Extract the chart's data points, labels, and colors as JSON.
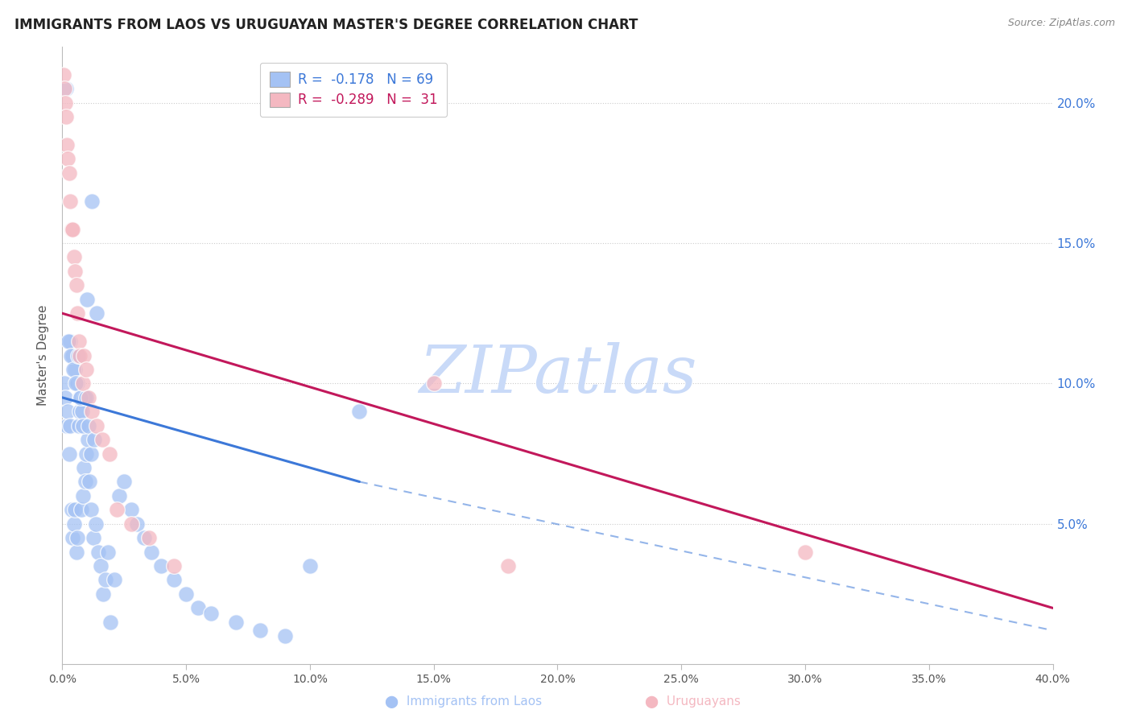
{
  "title": "IMMIGRANTS FROM LAOS VS URUGUAYAN MASTER'S DEGREE CORRELATION CHART",
  "source": "Source: ZipAtlas.com",
  "ylabel": "Master's Degree",
  "legend": {
    "blue_r": "-0.178",
    "blue_n": "69",
    "pink_r": "-0.289",
    "pink_n": " 31"
  },
  "blue_color": "#a4c2f4",
  "pink_color": "#f4b8c1",
  "blue_line_color": "#3c78d8",
  "pink_line_color": "#c2185b",
  "watermark": "ZIPatlas",
  "watermark_color": "#c9daf8",
  "xlim": [
    0.0,
    40.0
  ],
  "ylim": [
    0.0,
    22.0
  ],
  "yticks": [
    5.0,
    10.0,
    15.0,
    20.0
  ],
  "xticks": [
    0.0,
    5.0,
    10.0,
    15.0,
    20.0,
    25.0,
    30.0,
    35.0,
    40.0
  ],
  "blue_scatter_x": [
    0.08,
    0.12,
    0.18,
    0.22,
    0.28,
    0.32,
    0.38,
    0.42,
    0.48,
    0.52,
    0.58,
    0.62,
    0.68,
    0.72,
    0.78,
    0.82,
    0.88,
    0.92,
    0.98,
    1.02,
    1.08,
    1.15,
    1.25,
    1.35,
    1.45,
    1.55,
    1.65,
    1.75,
    1.85,
    1.95,
    2.1,
    2.3,
    2.5,
    2.8,
    3.0,
    3.3,
    3.6,
    4.0,
    4.5,
    5.0,
    5.5,
    6.0,
    7.0,
    8.0,
    9.0,
    10.0,
    0.3,
    0.4,
    0.5,
    0.6,
    0.7,
    0.8,
    0.9,
    1.0,
    1.2,
    1.4,
    0.15,
    0.25,
    0.35,
    0.45,
    0.55,
    0.65,
    0.75,
    0.85,
    0.95,
    1.05,
    1.15,
    1.3,
    12.0
  ],
  "blue_scatter_y": [
    10.0,
    9.5,
    8.5,
    9.0,
    7.5,
    8.5,
    5.5,
    4.5,
    5.0,
    5.5,
    4.0,
    4.5,
    8.5,
    9.0,
    5.5,
    6.0,
    7.0,
    6.5,
    7.5,
    8.0,
    6.5,
    5.5,
    4.5,
    5.0,
    4.0,
    3.5,
    2.5,
    3.0,
    4.0,
    1.5,
    3.0,
    6.0,
    6.5,
    5.5,
    5.0,
    4.5,
    4.0,
    3.5,
    3.0,
    2.5,
    2.0,
    1.8,
    1.5,
    1.2,
    1.0,
    3.5,
    11.5,
    11.0,
    10.5,
    10.0,
    9.5,
    9.0,
    9.5,
    13.0,
    16.5,
    12.5,
    20.5,
    11.5,
    11.0,
    10.5,
    10.0,
    11.0,
    9.5,
    8.5,
    9.5,
    8.5,
    7.5,
    8.0,
    9.0
  ],
  "pink_scatter_x": [
    0.05,
    0.08,
    0.12,
    0.15,
    0.18,
    0.22,
    0.28,
    0.32,
    0.38,
    0.42,
    0.48,
    0.52,
    0.58,
    0.62,
    0.68,
    0.72,
    0.82,
    0.88,
    0.95,
    1.05,
    1.2,
    1.4,
    1.6,
    1.9,
    2.2,
    2.8,
    3.5,
    4.5,
    30.0,
    15.0,
    18.0
  ],
  "pink_scatter_y": [
    21.0,
    20.5,
    20.0,
    19.5,
    18.5,
    18.0,
    17.5,
    16.5,
    15.5,
    15.5,
    14.5,
    14.0,
    13.5,
    12.5,
    11.5,
    11.0,
    10.0,
    11.0,
    10.5,
    9.5,
    9.0,
    8.5,
    8.0,
    7.5,
    5.5,
    5.0,
    4.5,
    3.5,
    4.0,
    10.0,
    3.5
  ],
  "blue_line_x0": 0.0,
  "blue_line_x1": 12.0,
  "blue_line_y0": 9.5,
  "blue_line_y1": 6.5,
  "blue_dash_x0": 12.0,
  "blue_dash_x1": 40.0,
  "blue_dash_y0": 6.5,
  "blue_dash_y1": 1.2,
  "pink_line_x0": 0.0,
  "pink_line_x1": 40.0,
  "pink_line_y0": 12.5,
  "pink_line_y1": 2.0
}
